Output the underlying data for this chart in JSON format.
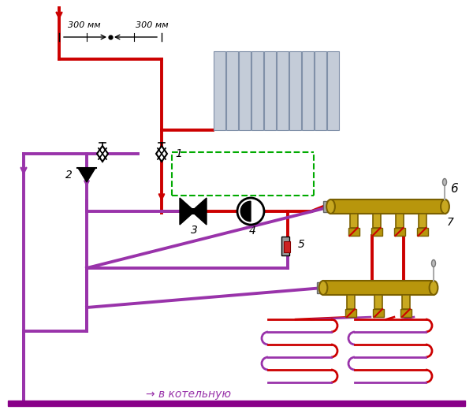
{
  "bg_color": "#ffffff",
  "red": "#cc0000",
  "purple": "#9933aa",
  "green_dash": "#00aa00",
  "brass_body": "#b8960c",
  "brass_edge": "#7a6000",
  "brass_cap": "#c8a820",
  "gray_rad": "#c0c8d8",
  "gray_rad_edge": "#888898",
  "black": "#000000",
  "white": "#ffffff",
  "bottom_purple": "#880088",
  "title_bottom": "→ в котельную",
  "dim_text_l": "300 мм",
  "dim_text_r": "300 мм",
  "label_1": "1",
  "label_2": "2",
  "label_3": "3",
  "label_4": "4",
  "label_5": "5",
  "label_6": "6",
  "label_7": "7"
}
